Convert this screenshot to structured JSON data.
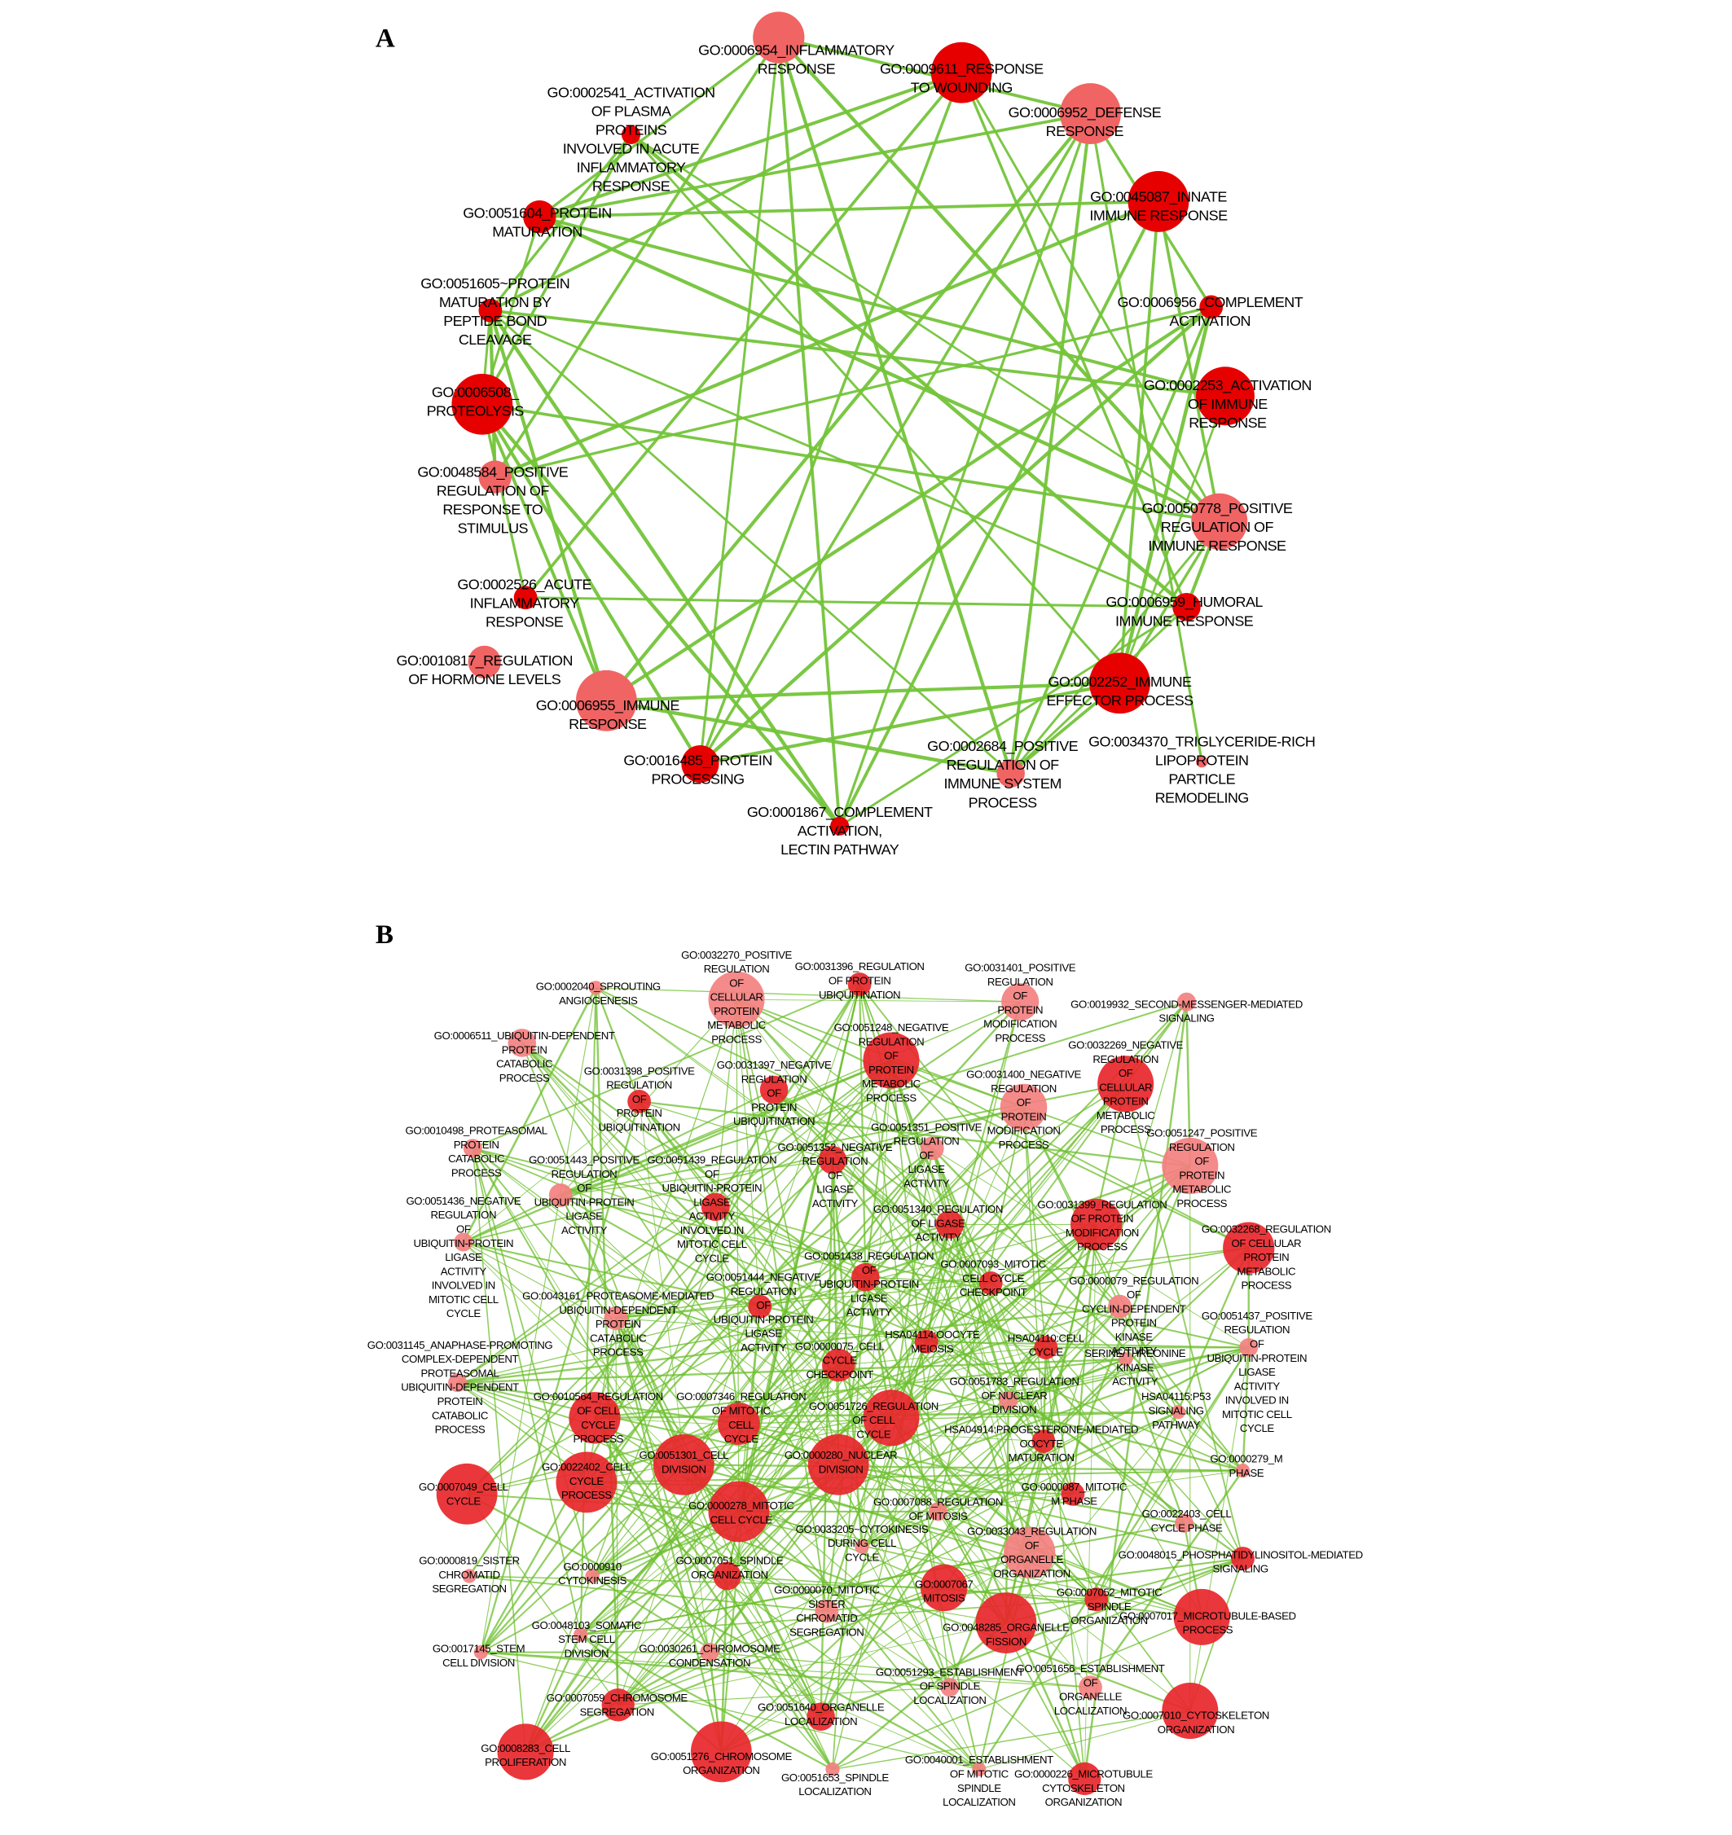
{
  "panels": [
    {
      "label": "A",
      "nodes": [
        {
          "lines": [
            "GO:0006954_INFLAMMATORY",
            "RESPONSE"
          ],
          "color": "#f06464"
        },
        {
          "lines": [
            "GO:0009611_RESPONSE",
            "TO WOUNDING"
          ],
          "color": "#e60000"
        },
        {
          "lines": [
            "GO:0006952_DEFENSE",
            "RESPONSE"
          ],
          "color": "#f06464"
        },
        {
          "lines": [
            "GO:0045087_INNATE",
            "IMMUNE RESPONSE"
          ],
          "color": "#e60000"
        },
        {
          "lines": [
            "GO:0006956_COMPLEMENT",
            "ACTIVATION"
          ],
          "color": "#e60000"
        },
        {
          "lines": [
            "GO:0002253_ACTIVATION",
            "OF IMMUNE",
            "RESPONSE"
          ],
          "color": "#e60000"
        },
        {
          "lines": [
            "GO:0050778_POSITIVE",
            "REGULATION OF",
            "IMMUNE RESPONSE"
          ],
          "color": "#f06464"
        },
        {
          "lines": [
            "GO:0006959_HUMORAL",
            "IMMUNE RESPONSE"
          ],
          "color": "#e60000"
        },
        {
          "lines": [
            "GO:0002252_IMMUNE",
            "EFFECTOR PROCESS"
          ],
          "color": "#e60000"
        },
        {
          "lines": [
            "GO:0034370_TRIGLYCERIDE-RICH",
            "LIPOPROTEIN",
            "PARTICLE",
            "REMODELING"
          ],
          "color": "#f06464"
        },
        {
          "lines": [
            "GO:0002684_POSITIVE",
            "REGULATION OF",
            "IMMUNE SYSTEM",
            "PROCESS"
          ],
          "color": "#f06464"
        },
        {
          "lines": [
            "GO:0001867_COMPLEMENT",
            "ACTIVATION,",
            "LECTIN PATHWAY"
          ],
          "color": "#e60000"
        },
        {
          "lines": [
            "GO:0016485_PROTEIN",
            "PROCESSING"
          ],
          "color": "#e60000"
        },
        {
          "lines": [
            "GO:0006955_IMMUNE",
            "RESPONSE"
          ],
          "color": "#f06464"
        },
        {
          "lines": [
            "GO:0010817_REGULATION",
            "OF HORMONE LEVELS"
          ],
          "color": "#f06464"
        },
        {
          "lines": [
            "GO:0002526_ACUTE",
            "INFLAMMATORY",
            "RESPONSE"
          ],
          "color": "#e60000"
        },
        {
          "lines": [
            "GO:0048584_POSITIVE",
            "REGULATION OF",
            "RESPONSE TO",
            "STIMULUS"
          ],
          "color": "#f06464"
        },
        {
          "lines": [
            "GO:0006508_",
            "PROTEOLYSIS"
          ],
          "color": "#e60000"
        },
        {
          "lines": [
            "GO:0051605~PROTEIN",
            "MATURATION BY",
            "PEPTIDE BOND",
            "CLEAVAGE"
          ],
          "color": "#e60000"
        },
        {
          "lines": [
            "GO:0051604_PROTEIN",
            "MATURATION"
          ],
          "color": "#e60000"
        },
        {
          "lines": [
            "GO:0002541_ACTIVATION",
            "OF PLASMA",
            "PROTEINS",
            "INVOLVED IN ACUTE",
            "INFLAMMATORY",
            "RESPONSE"
          ],
          "color": "#e60000"
        }
      ]
    },
    {
      "label": "B",
      "nodes": [
        {
          "lines": [
            "GO:0002040_SPROUTING",
            "ANGIOGENESIS"
          ],
          "color": "#f48080"
        },
        {
          "lines": [
            "GO:0032270_POSITIVE",
            "REGULATION",
            "OF",
            "CELLULAR",
            "PROTEIN",
            "METABOLIC",
            "PROCESS"
          ],
          "color": "#f48080"
        },
        {
          "lines": [
            "GO:0031396_REGULATION",
            "OF PROTEIN",
            "UBIQUITINATION"
          ],
          "color": "#e8262b"
        },
        {
          "lines": [
            "GO:0031401_POSITIVE",
            "REGULATION",
            "OF",
            "PROTEIN",
            "MODIFICATION",
            "PROCESS"
          ],
          "color": "#f48080"
        },
        {
          "lines": [
            "GO:0019932_SECOND-MESSENGER-MEDIATED",
            "SIGNALING"
          ],
          "color": "#f48080"
        },
        {
          "lines": [
            "GO:0006511_UBIQUITIN-DEPENDENT",
            "PROTEIN",
            "CATABOLIC",
            "PROCESS"
          ],
          "color": "#f48080"
        },
        {
          "lines": [
            "GO:0051248_NEGATIVE",
            "REGULATION",
            "OF",
            "PROTEIN",
            "METABOLIC",
            "PROCESS"
          ],
          "color": "#e8262b"
        },
        {
          "lines": [
            "GO:0032269_NEGATIVE",
            "REGULATION",
            "OF",
            "CELLULAR",
            "PROTEIN",
            "METABOLIC",
            "PROCESS"
          ],
          "color": "#e8262b"
        },
        {
          "lines": [
            "GO:0031398_POSITIVE",
            "REGULATION",
            "OF",
            "PROTEIN",
            "UBIQUITINATION"
          ],
          "color": "#e8262b"
        },
        {
          "lines": [
            "GO:0031397_NEGATIVE",
            "REGULATION",
            "OF",
            "PROTEIN",
            "UBIQUITINATION"
          ],
          "color": "#e8262b"
        },
        {
          "lines": [
            "GO:0031400_NEGATIVE",
            "REGULATION",
            "OF",
            "PROTEIN",
            "MODIFICATION",
            "PROCESS"
          ],
          "color": "#f48080"
        },
        {
          "lines": [
            "GO:0010498_PROTEASOMAL",
            "PROTEIN",
            "CATABOLIC",
            "PROCESS"
          ],
          "color": "#f48080"
        },
        {
          "lines": [
            "GO:0051352_NEGATIVE",
            "REGULATION",
            "OF",
            "LIGASE",
            "ACTIVITY"
          ],
          "color": "#e8262b"
        },
        {
          "lines": [
            "GO:0051351_POSITIVE",
            "REGULATION",
            "OF",
            "LIGASE",
            "ACTIVITY"
          ],
          "color": "#f48080"
        },
        {
          "lines": [
            "GO:0051247_POSITIVE",
            "REGULATION",
            "OF",
            "PROTEIN",
            "METABOLIC",
            "PROCESS"
          ],
          "color": "#f48080"
        },
        {
          "lines": [
            "GO:0051443_POSITIVE",
            "REGULATION",
            "OF",
            "UBIQUITIN-PROTEIN",
            "LIGASE",
            "ACTIVITY"
          ],
          "color": "#f48080"
        },
        {
          "lines": [
            "GO:0051439_REGULATION",
            "OF",
            "UBIQUITIN-PROTEIN",
            "LIGASE",
            "ACTIVITY",
            "INVOLVED IN",
            "MITOTIC CELL",
            "CYCLE"
          ],
          "color": "#e8262b"
        },
        {
          "lines": [
            "GO:0051436_NEGATIVE",
            "REGULATION",
            "OF",
            "UBIQUITIN-PROTEIN",
            "LIGASE",
            "ACTIVITY",
            "INVOLVED IN",
            "MITOTIC CELL",
            "CYCLE"
          ],
          "color": "#f48080"
        },
        {
          "lines": [
            "GO:0051340_REGULATION",
            "OF LIGASE",
            "ACTIVITY"
          ],
          "color": "#e8262b"
        },
        {
          "lines": [
            "GO:0031399_REGULATION",
            "OF PROTEIN",
            "MODIFICATION",
            "PROCESS"
          ],
          "color": "#e8262b"
        },
        {
          "lines": [
            "GO:0032268_REGULATION",
            "OF CELLULAR",
            "PROTEIN",
            "METABOLIC",
            "PROCESS"
          ],
          "color": "#e8262b"
        },
        {
          "lines": [
            "GO:0051438_REGULATION",
            "OF",
            "UBIQUITIN-PROTEIN",
            "LIGASE",
            "ACTIVITY"
          ],
          "color": "#e8262b"
        },
        {
          "lines": [
            "GO:0007093_MITOTIC",
            "CELL CYCLE",
            "CHECKPOINT"
          ],
          "color": "#e8262b"
        },
        {
          "lines": [
            "GO:0051444_NEGATIVE",
            "REGULATION",
            "OF",
            "UBIQUITIN-PROTEIN",
            "LIGASE",
            "ACTIVITY"
          ],
          "color": "#e8262b"
        },
        {
          "lines": [
            "GO:0043161_PROTEASOME-MEDIATED",
            "UBIQUITIN-DEPENDENT",
            "PROTEIN",
            "CATABOLIC",
            "PROCESS"
          ],
          "color": "#f48080"
        },
        {
          "lines": [
            "GO:0000079_REGULATION",
            "OF",
            "CYCLIN-DEPENDENT",
            "PROTEIN",
            "KINASE",
            "ACTIVITY"
          ],
          "color": "#f48080"
        },
        {
          "lines": [
            "GO:0051437_POSITIVE",
            "REGULATION",
            "OF",
            "UBIQUITIN-PROTEIN",
            "LIGASE",
            "ACTIVITY",
            "INVOLVED IN",
            "MITOTIC CELL",
            "CYCLE"
          ],
          "color": "#f48080"
        },
        {
          "lines": [
            "GO:0031145_ANAPHASE-PROMOTING",
            "COMPLEX-DEPENDENT",
            "PROTEASOMAL",
            "UBIQUITIN-DEPENDENT",
            "PROTEIN",
            "CATABOLIC",
            "PROCESS"
          ],
          "color": "#f48080"
        },
        {
          "lines": [
            "HSA04114:OOCYTE",
            "MEIOSIS"
          ],
          "color": "#e8262b"
        },
        {
          "lines": [
            "HSA04110:CELL",
            "CYCLE"
          ],
          "color": "#e8262b"
        },
        {
          "lines": [
            "SERINE/THREONINE",
            "KINASE",
            "ACTIVITY"
          ],
          "color": "#f48080"
        },
        {
          "lines": [
            "GO:0000075_CELL",
            "CYCLE",
            "CHECKPOINT"
          ],
          "color": "#e8262b"
        },
        {
          "lines": [
            "GO:0010564_REGULATION",
            "OF CELL",
            "CYCLE",
            "PROCESS"
          ],
          "color": "#e8262b"
        },
        {
          "lines": [
            "GO:0007346_REGULATION",
            "OF MITOTIC",
            "CELL",
            "CYCLE"
          ],
          "color": "#e8262b"
        },
        {
          "lines": [
            "GO:0051726_REGULATION",
            "OF CELL",
            "CYCLE"
          ],
          "color": "#e8262b"
        },
        {
          "lines": [
            "GO:0051783_REGULATION",
            "OF NUCLEAR",
            "DIVISION"
          ],
          "color": "#f48080"
        },
        {
          "lines": [
            "HSA04115:P53",
            "SIGNALING",
            "PATHWAY"
          ],
          "color": "#f48080"
        },
        {
          "lines": [
            "HSA04914:PROGESTERONE-MEDIATED",
            "OOCYTE",
            "MATURATION"
          ],
          "color": "#e8262b"
        },
        {
          "lines": [
            "GO:0051301_CELL",
            "DIVISION"
          ],
          "color": "#e8262b"
        },
        {
          "lines": [
            "GO:0000280_NUCLEAR",
            "DIVISION"
          ],
          "color": "#e8262b"
        },
        {
          "lines": [
            "GO:0000279_M",
            "PHASE"
          ],
          "color": "#f48080"
        },
        {
          "lines": [
            "GO:0022402_CELL",
            "CYCLE",
            "PROCESS"
          ],
          "color": "#e8262b"
        },
        {
          "lines": [
            "GO:0007049_CELL",
            "CYCLE"
          ],
          "color": "#e8262b"
        },
        {
          "lines": [
            "GO:0000278_MITOTIC",
            "CELL CYCLE"
          ],
          "color": "#e8262b"
        },
        {
          "lines": [
            "GO:0007088_REGULATION",
            "OF MITOSIS"
          ],
          "color": "#f48080"
        },
        {
          "lines": [
            "GO:0000087_MITOTIC",
            "M PHASE"
          ],
          "color": "#e8262b"
        },
        {
          "lines": [
            "GO:0022403_CELL",
            "CYCLE PHASE"
          ],
          "color": "#f48080"
        },
        {
          "lines": [
            "GO:0033205~CYTOKINESIS",
            "DURING CELL",
            "CYCLE"
          ],
          "color": "#f48080"
        },
        {
          "lines": [
            "GO:0033043_REGULATION",
            "OF",
            "ORGANELLE",
            "ORGANIZATION"
          ],
          "color": "#f48080"
        },
        {
          "lines": [
            "GO:0048015_PHOSPHATIDYLINOSITOL-MEDIATED",
            "SIGNALING"
          ],
          "color": "#e8262b"
        },
        {
          "lines": [
            "GO:0000819_SISTER",
            "CHROMATID",
            "SEGREGATION"
          ],
          "color": "#f48080"
        },
        {
          "lines": [
            "GO:0000910",
            "CYTOKINESIS"
          ],
          "color": "#f48080"
        },
        {
          "lines": [
            "GO:0007051_SPINDLE",
            "ORGANIZATION"
          ],
          "color": "#e8262b"
        },
        {
          "lines": [
            "GO:0007067",
            "MITOSIS"
          ],
          "color": "#e8262b"
        },
        {
          "lines": [
            "GO:0007052_MITOTIC",
            "SPINDLE",
            "ORGANIZATION"
          ],
          "color": "#e8262b"
        },
        {
          "lines": [
            "GO:0007017_MICROTUBULE-BASED",
            "PROCESS"
          ],
          "color": "#e8262b"
        },
        {
          "lines": [
            "GO:0000070_MITOTIC",
            "SISTER",
            "CHROMATID",
            "SEGREGATION"
          ],
          "color": "#f48080"
        },
        {
          "lines": [
            "GO:0048285_ORGANELLE",
            "FISSION"
          ],
          "color": "#e8262b"
        },
        {
          "lines": [
            "GO:0048103_SOMATIC",
            "STEM CELL",
            "DIVISION"
          ],
          "color": "#f48080"
        },
        {
          "lines": [
            "GO:0017145_STEM",
            "CELL DIVISION"
          ],
          "color": "#f48080"
        },
        {
          "lines": [
            "GO:0030261_CHROMOSOME",
            "CONDENSATION"
          ],
          "color": "#f48080"
        },
        {
          "lines": [
            "GO:0051293_ESTABLISHMENT",
            "OF SPINDLE",
            "LOCALIZATION"
          ],
          "color": "#f48080"
        },
        {
          "lines": [
            "GO:0051656_ESTABLISHMENT",
            "OF",
            "ORGANELLE",
            "LOCALIZATION"
          ],
          "color": "#f48080"
        },
        {
          "lines": [
            "GO:0007059_CHROMOSOME",
            "SEGREGATION"
          ],
          "color": "#e8262b"
        },
        {
          "lines": [
            "GO:0051640_ORGANELLE",
            "LOCALIZATION"
          ],
          "color": "#e8262b"
        },
        {
          "lines": [
            "GO:0007010_CYTOSKELETON",
            "ORGANIZATION"
          ],
          "color": "#e8262b"
        },
        {
          "lines": [
            "GO:0008283_CELL",
            "PROLIFERATION"
          ],
          "color": "#e8262b"
        },
        {
          "lines": [
            "GO:0051276_CHROMOSOME",
            "ORGANIZATION"
          ],
          "color": "#e8262b"
        },
        {
          "lines": [
            "GO:0051653_SPINDLE",
            "LOCALIZATION"
          ],
          "color": "#f48080"
        },
        {
          "lines": [
            "GO:0040001_ESTABLISHMENT",
            "OF MITOTIC",
            "SPINDLE",
            "LOCALIZATION"
          ],
          "color": "#f48080"
        },
        {
          "lines": [
            "GO:0000226_MICROTUBULE",
            "CYTOSKELETON",
            "ORGANIZATION"
          ],
          "color": "#e8262b"
        }
      ]
    }
  ]
}
